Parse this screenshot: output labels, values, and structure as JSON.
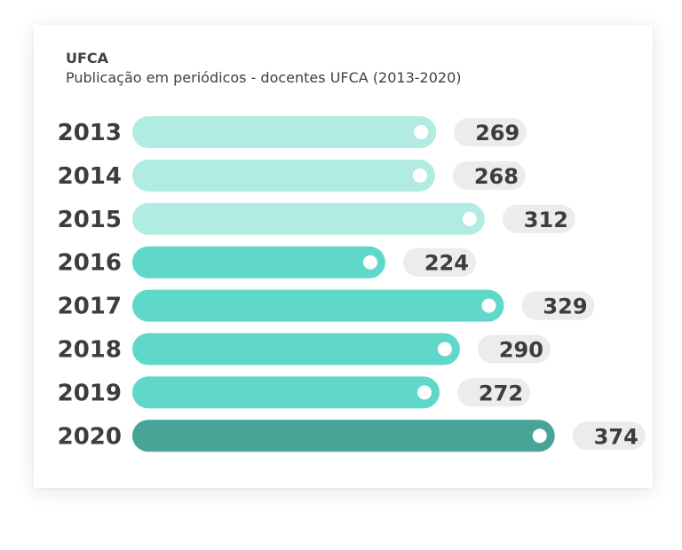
{
  "header": {
    "title": "UFCA",
    "subtitle": "Publicação em periódicos - docentes UFCA (2013-2020)"
  },
  "colors": {
    "light": "#b2ebe2",
    "medium": "#5fd8c9",
    "dark": "#47a497",
    "pill": "#ececec",
    "text": "#3d3d3d"
  },
  "chart_data": {
    "type": "bar",
    "orientation": "horizontal",
    "title": "Publicação em periódicos - docentes UFCA (2013-2020)",
    "categories": [
      "2013",
      "2014",
      "2015",
      "2016",
      "2017",
      "2018",
      "2019",
      "2020"
    ],
    "values": [
      269,
      268,
      312,
      224,
      329,
      290,
      272,
      374
    ],
    "bar_colors": [
      "#b2ebe2",
      "#b2ebe2",
      "#b2ebe2",
      "#5fd8c9",
      "#5fd8c9",
      "#5fd8c9",
      "#5fd8c9",
      "#47a497"
    ],
    "grid": false,
    "legend": "none"
  }
}
